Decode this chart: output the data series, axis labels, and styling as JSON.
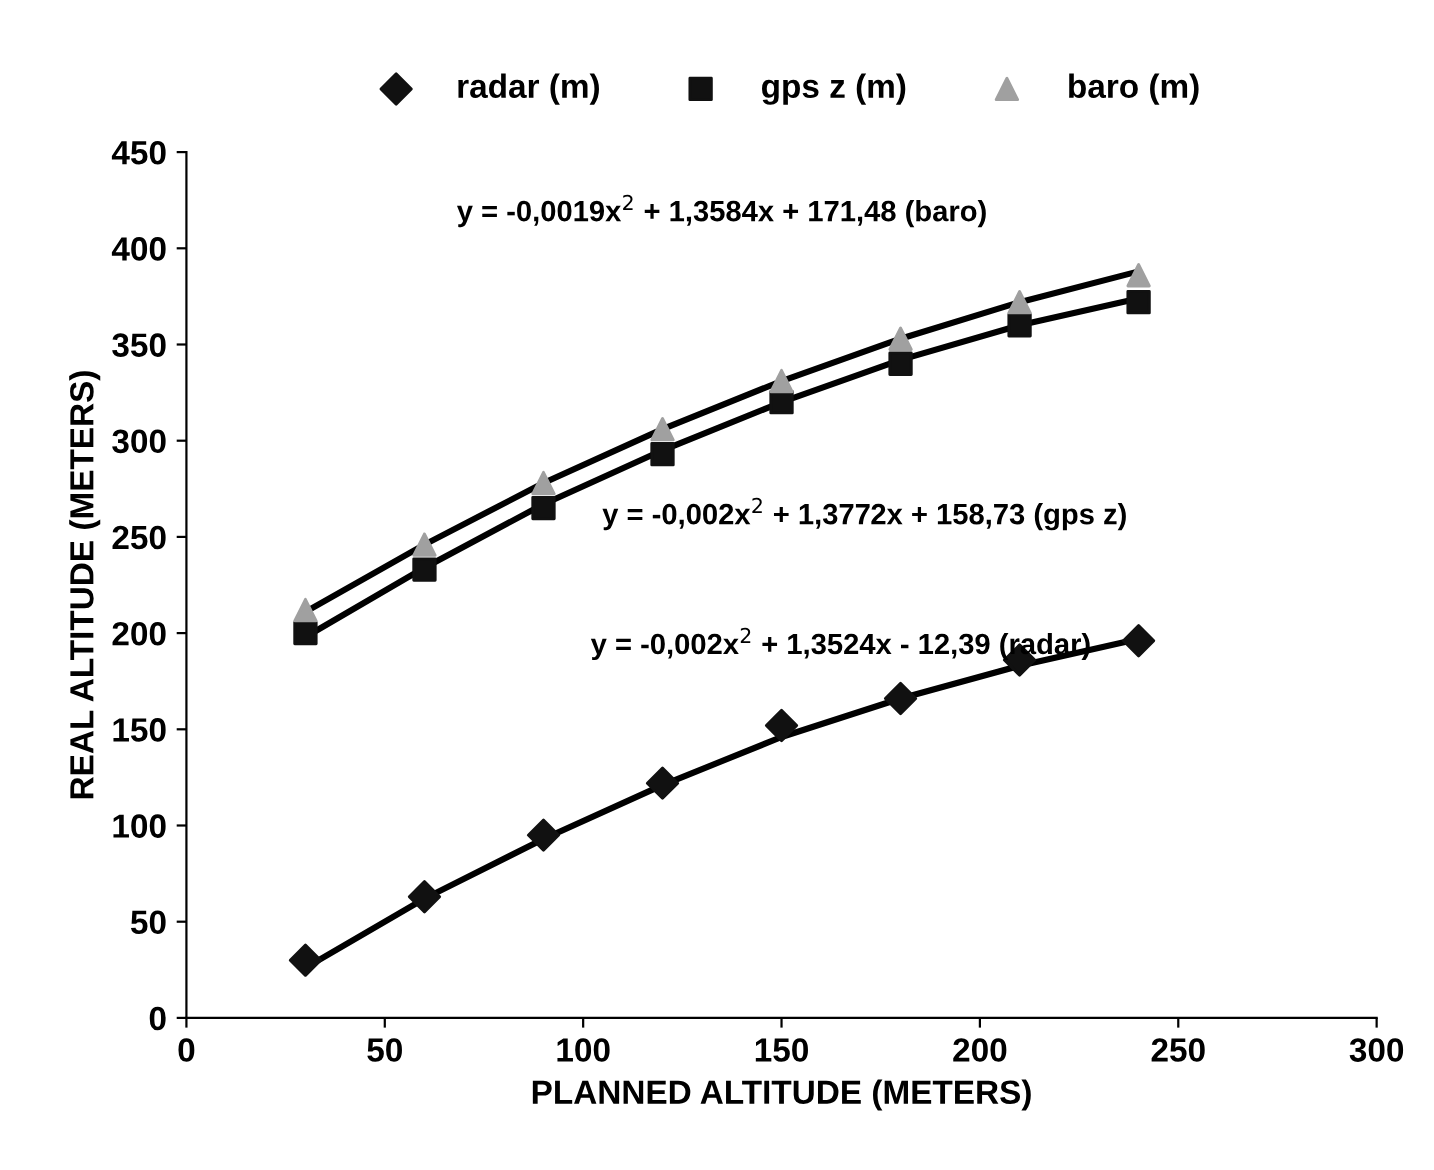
{
  "chart_data": {
    "type": "scatter",
    "xlabel": "PLANNED ALTITUDE (METERS)",
    "ylabel": "REAL ALTITUDE (METERS)",
    "x": [
      30,
      60,
      90,
      120,
      150,
      180,
      210,
      240
    ],
    "series": [
      {
        "name": "radar (m)",
        "color": "#111111",
        "marker": "diamond",
        "values": [
          30,
          63,
          95,
          122,
          152,
          166,
          186,
          196
        ]
      },
      {
        "name": "gps z (m)",
        "color": "#111111",
        "marker": "square",
        "values": [
          200,
          233,
          265,
          293,
          320,
          340,
          360,
          372
        ]
      },
      {
        "name": "baro (m)",
        "color": "#a0a0a0",
        "marker": "triangle",
        "values": [
          212,
          246,
          278,
          306,
          331,
          353,
          372,
          386
        ]
      },
      {
        "type": "line",
        "color": "#000000",
        "marker": "none",
        "values": [
          26,
          62,
          93,
          121,
          146,
          166,
          183,
          197
        ]
      },
      {
        "type": "line",
        "color": "#000000",
        "marker": "none",
        "values": [
          198,
          234,
          267,
          295,
          320,
          342,
          360,
          374
        ]
      },
      {
        "type": "line",
        "color": "#000000",
        "marker": "none",
        "values": [
          211,
          246,
          278,
          306,
          331,
          353,
          372,
          388
        ]
      }
    ],
    "annotations": [
      "y = -0,0019x$^{2}$ + 1,3584x + 171,48 (baro)",
      "y = -0,002x$^{2}$ + 1,3772x + 158,73 (gps z)",
      "y = -0,002x$^{2}$ + 1,3524x - 12,39 (radar)"
    ],
    "xlim": [
      0,
      300
    ],
    "xticks": [
      0,
      50,
      100,
      150,
      200,
      250,
      300
    ],
    "ylim": [
      0,
      450
    ],
    "yticks": [
      0,
      50,
      100,
      150,
      200,
      250,
      300,
      350,
      400,
      450
    ],
    "grid": false,
    "legend": "top"
  }
}
